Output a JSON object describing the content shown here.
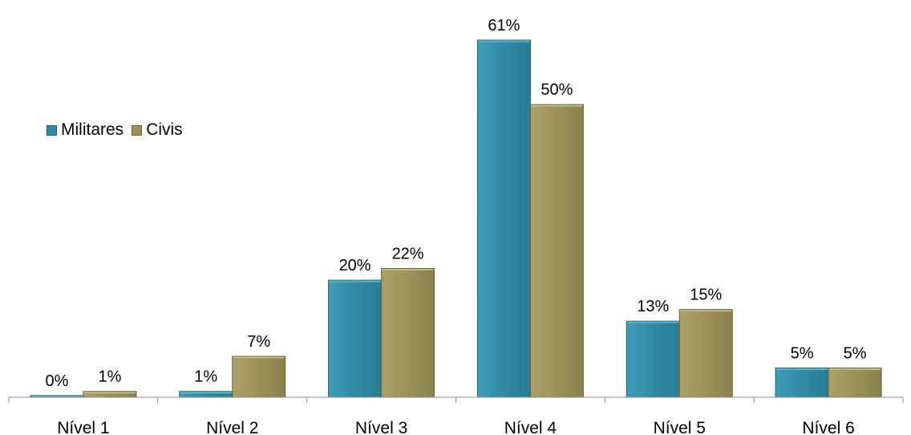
{
  "chart_data": {
    "type": "bar",
    "categories": [
      "Nível 1",
      "Nível 2",
      "Nível 3",
      "Nível 4",
      "Nível 5",
      "Nível 6"
    ],
    "series": [
      {
        "name": "Militares",
        "values": [
          0.3,
          1,
          20,
          61,
          13,
          5
        ],
        "labels": [
          "0%",
          "1%",
          "20%",
          "61%",
          "13%",
          "5%"
        ],
        "color": "#318AA4"
      },
      {
        "name": "Civis",
        "values": [
          1,
          7,
          22,
          50,
          15,
          5
        ],
        "labels": [
          "1%",
          "7%",
          "22%",
          "50%",
          "15%",
          "5%"
        ],
        "color": "#9B9159"
      }
    ],
    "title": "",
    "xlabel": "",
    "ylabel": "",
    "ylim": [
      0,
      61
    ],
    "grid": false,
    "legend_position": "left"
  }
}
